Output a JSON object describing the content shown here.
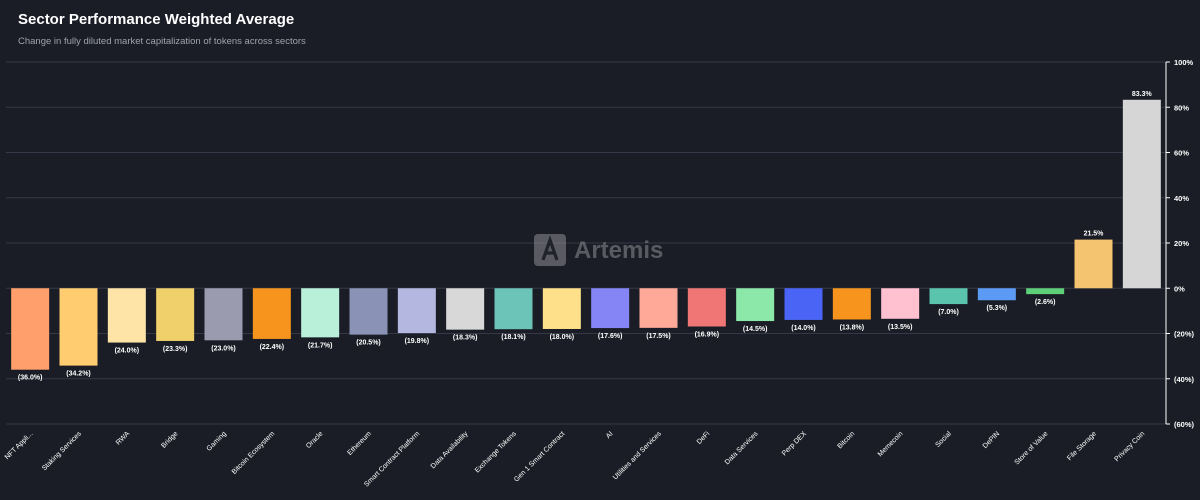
{
  "header": {
    "title": "Sector Performance Weighted Average",
    "subtitle": "Change in fully diluted market capitalization of tokens across sectors"
  },
  "watermark": {
    "text": "Artemis"
  },
  "colors": {
    "background": "#1b1d26",
    "grid": "#353846",
    "axis": "#ffffff",
    "text": "#ffffff"
  },
  "chart_data": {
    "type": "bar",
    "title": "Sector Performance Weighted Average",
    "subtitle": "Change in fully diluted market capitalization of tokens across sectors",
    "xlabel": "",
    "ylabel": "",
    "ylim": [
      -60,
      100
    ],
    "yticks": [
      100,
      80,
      60,
      40,
      20,
      0,
      -20,
      -40,
      -60
    ],
    "ytick_labels": [
      "100%",
      "80%",
      "60%",
      "40%",
      "20%",
      "0%",
      "(20%)",
      "(40%)",
      "(60%)"
    ],
    "y_axis_side": "right",
    "grid": true,
    "categories": [
      "NFT Appli...",
      "Staking Services",
      "RWA",
      "Bridge",
      "Gaming",
      "Bitcoin Ecosystem",
      "Oracle",
      "Ethereum",
      "Smart Contract Platform",
      "Data Availability",
      "Exchange Tokens",
      "Gen 1 Smart Contract",
      "AI",
      "Utilities and Services",
      "DeFi",
      "Data Services",
      "Perp DEX",
      "Bitcoin",
      "Memecoin",
      "Social",
      "DePIN",
      "Store of Value",
      "File Storage",
      "Privacy Coin"
    ],
    "values": [
      -36.0,
      -34.2,
      -24.0,
      -23.3,
      -23.0,
      -22.4,
      -21.7,
      -20.5,
      -19.8,
      -18.3,
      -18.1,
      -18.0,
      -17.6,
      -17.5,
      -16.9,
      -14.5,
      -14.0,
      -13.8,
      -13.5,
      -7.0,
      -5.3,
      -2.6,
      21.5,
      83.3
    ],
    "value_labels": [
      "(36.0%)",
      "(34.2%)",
      "(24.0%)",
      "(23.3%)",
      "(23.0%)",
      "(22.4%)",
      "(21.7%)",
      "(20.5%)",
      "(19.8%)",
      "(18.3%)",
      "(18.1%)",
      "(18.0%)",
      "(17.6%)",
      "(17.5%)",
      "(16.9%)",
      "(14.5%)",
      "(14.0%)",
      "(13.8%)",
      "(13.5%)",
      "(7.0%)",
      "(5.3%)",
      "(2.6%)",
      "21.5%",
      "83.3%"
    ],
    "bar_colors": [
      "#ff9f6b",
      "#ffcc70",
      "#ffe4a8",
      "#f0d06a",
      "#9b9bb0",
      "#f7941d",
      "#b8f0da",
      "#8a93b5",
      "#b4b8e0",
      "#d8d8d8",
      "#6cc4b8",
      "#ffe08a",
      "#8585f5",
      "#ffaa99",
      "#f07575",
      "#8be8a8",
      "#4a65f5",
      "#f7941d",
      "#ffc0d0",
      "#5bc4ad",
      "#5b9bf5",
      "#5fd07a",
      "#f4c470",
      "#d6d6d6"
    ]
  }
}
